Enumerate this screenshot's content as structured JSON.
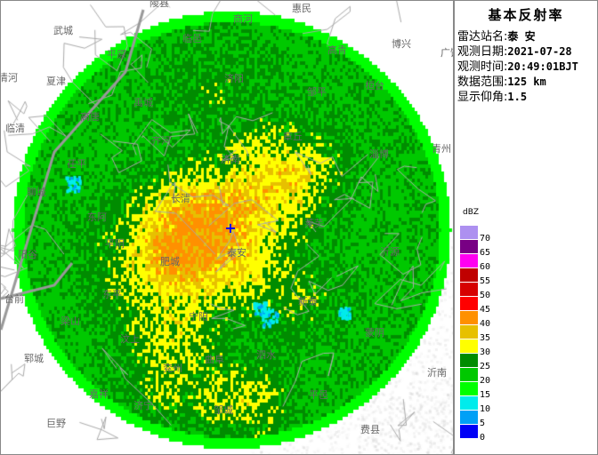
{
  "panel": {
    "title": "基本反射率",
    "rows": [
      {
        "label": "雷达站名:",
        "value": "泰 安"
      },
      {
        "label": "观测日期:",
        "value": "2021-07-28"
      },
      {
        "label": "观测时间:",
        "value": "20:49:01BJT"
      },
      {
        "label": "数据范围:",
        "value": "125 km"
      },
      {
        "label": "显示仰角:",
        "value": "1.5"
      }
    ]
  },
  "legend": {
    "unit": "dBZ",
    "items": [
      {
        "label": "70",
        "color": "#ad90f0"
      },
      {
        "label": "65",
        "color": "#780084"
      },
      {
        "label": "60",
        "color": "#ff00f0"
      },
      {
        "label": "55",
        "color": "#c00000"
      },
      {
        "label": "50",
        "color": "#d60000"
      },
      {
        "label": "45",
        "color": "#ff0000"
      },
      {
        "label": "40",
        "color": "#ff9000"
      },
      {
        "label": "35",
        "color": "#e7c000"
      },
      {
        "label": "30",
        "color": "#ffff00"
      },
      {
        "label": "25",
        "color": "#008c00"
      },
      {
        "label": "20",
        "color": "#00c800"
      },
      {
        "label": "15",
        "color": "#00ff00"
      },
      {
        "label": "10",
        "color": "#00ecec"
      },
      {
        "label": "5",
        "color": "#01a0f6"
      },
      {
        "label": "0",
        "color": "#0000f6"
      }
    ]
  },
  "map": {
    "places": [
      "陵县",
      "惠民",
      "商河",
      "博兴",
      "广饶",
      "武城",
      "平原",
      "临邑",
      "夏津",
      "清河",
      "禹城",
      "高唐",
      "临清",
      "齐河",
      "济阳",
      "邹平",
      "高青",
      "桓台",
      "章丘",
      "济南",
      "茌平",
      "聊城",
      "东阿",
      "长清",
      "平阴",
      "阳谷",
      "肥城",
      "台前",
      "东平",
      "泰安",
      "莱芜",
      "淄博",
      "青州",
      "沂源",
      "新泰",
      "梁山",
      "汶上",
      "宁阳",
      "曲阜",
      "兖州",
      "郓城",
      "嘉祥",
      "济宁",
      "邹城",
      "泗水",
      "蒙阴",
      "平邑",
      "沂南",
      "费县",
      "巨野"
    ],
    "radar_icon": "crosshair-plus-icon"
  }
}
